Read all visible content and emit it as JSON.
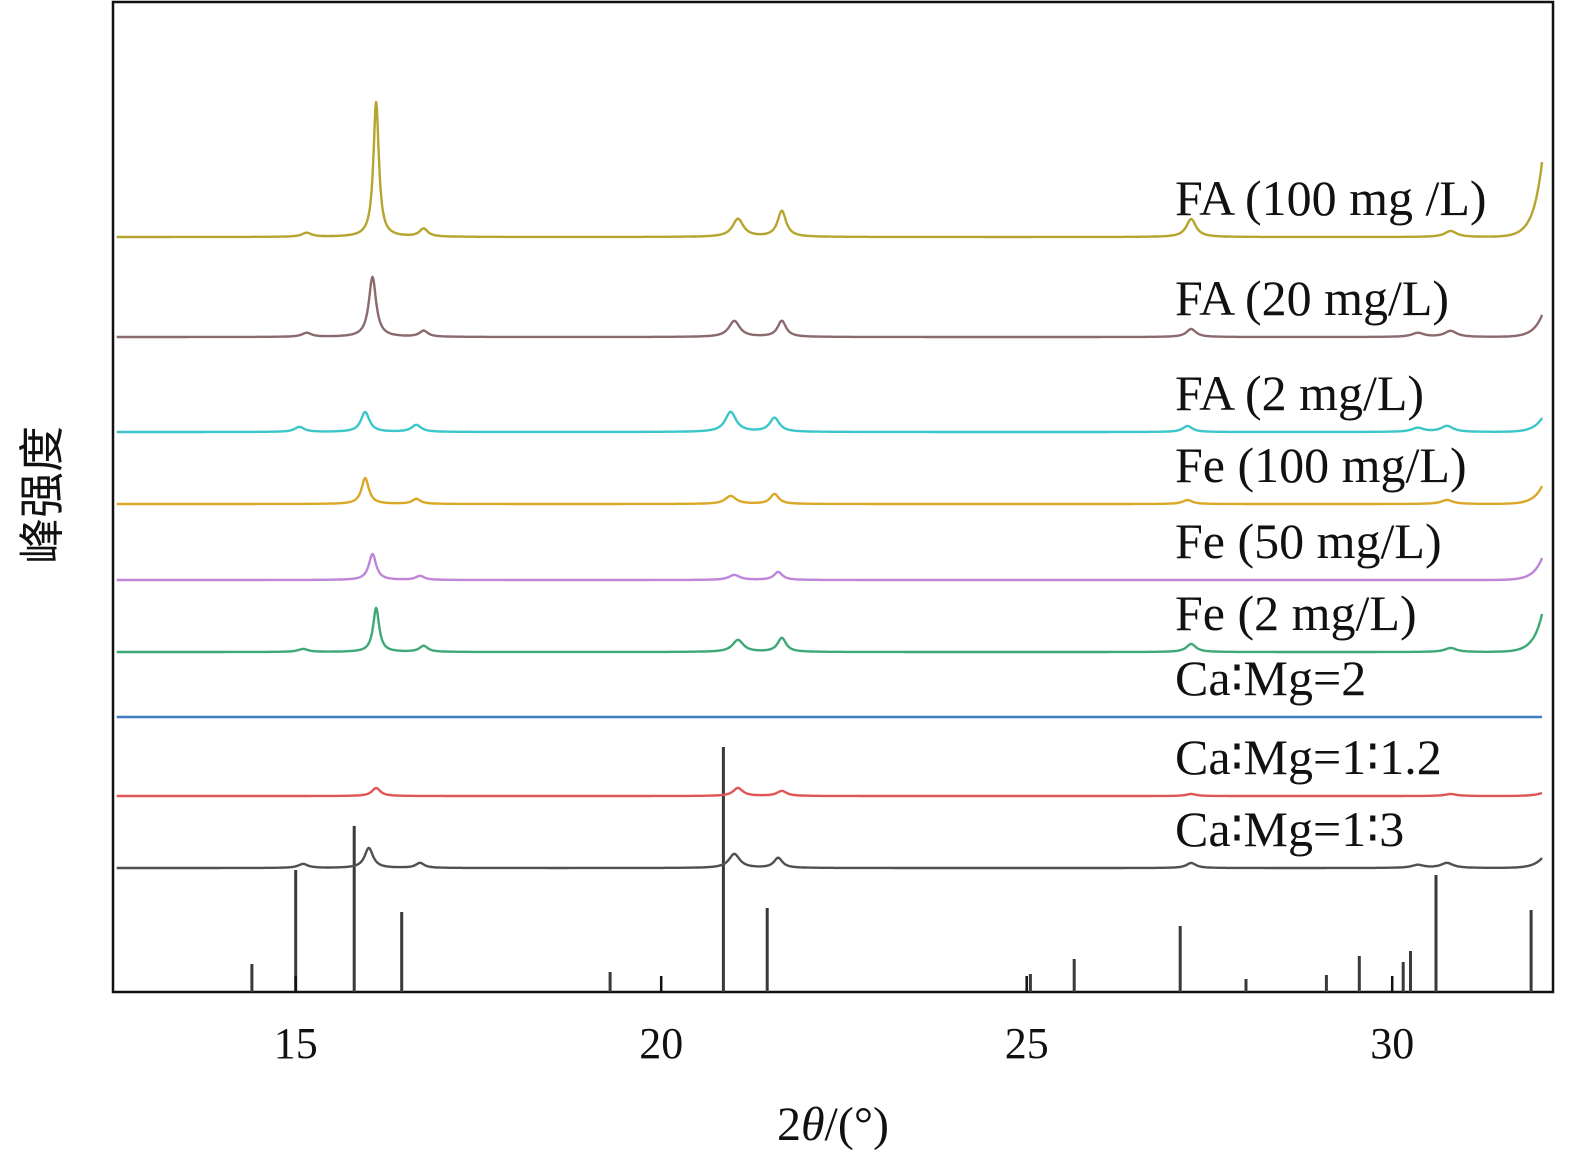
{
  "chart_data": {
    "type": "line",
    "title": "",
    "xlabel_prefix": "2",
    "xlabel_theta": "θ",
    "xlabel_suffix": "/(°)",
    "ylabel": "峰强度",
    "xlim": [
      12.5,
      32.2
    ],
    "xticks": [
      15,
      20,
      25,
      30
    ],
    "grid": false,
    "legend": "inline labels, right side",
    "series": [
      {
        "name": "FA (100 mg /L)",
        "color": "#b5a52e",
        "baseline": 7.55,
        "end_rise": 0.75,
        "peaks": [
          [
            15.15,
            0.04,
            0.08
          ],
          [
            16.1,
            1.35,
            0.045
          ],
          [
            16.75,
            0.08,
            0.07
          ],
          [
            21.05,
            0.18,
            0.09
          ],
          [
            21.65,
            0.26,
            0.07
          ],
          [
            27.25,
            0.18,
            0.08
          ],
          [
            30.8,
            0.06,
            0.1
          ]
        ]
      },
      {
        "name": "FA (20 mg/L)",
        "color": "#8b6a6e",
        "baseline": 6.55,
        "end_rise": 0.22,
        "peaks": [
          [
            15.15,
            0.04,
            0.08
          ],
          [
            16.05,
            0.6,
            0.06
          ],
          [
            16.75,
            0.06,
            0.07
          ],
          [
            21.0,
            0.16,
            0.09
          ],
          [
            21.65,
            0.16,
            0.07
          ],
          [
            27.25,
            0.08,
            0.08
          ],
          [
            30.35,
            0.04,
            0.1
          ],
          [
            30.8,
            0.06,
            0.1
          ]
        ]
      },
      {
        "name": "FA (2 mg/L)",
        "color": "#3cc6c9",
        "baseline": 5.6,
        "end_rise": 0.14,
        "peaks": [
          [
            15.05,
            0.05,
            0.08
          ],
          [
            15.95,
            0.2,
            0.07
          ],
          [
            16.65,
            0.07,
            0.08
          ],
          [
            20.95,
            0.2,
            0.09
          ],
          [
            21.55,
            0.14,
            0.08
          ],
          [
            27.2,
            0.06,
            0.08
          ],
          [
            30.35,
            0.04,
            0.1
          ],
          [
            30.75,
            0.06,
            0.1
          ]
        ]
      },
      {
        "name": "Fe (100 mg/L)",
        "color": "#d9a826",
        "baseline": 4.88,
        "end_rise": 0.18,
        "peaks": [
          [
            15.95,
            0.26,
            0.06
          ],
          [
            16.65,
            0.05,
            0.07
          ],
          [
            20.95,
            0.08,
            0.09
          ],
          [
            21.55,
            0.1,
            0.07
          ],
          [
            27.2,
            0.04,
            0.08
          ],
          [
            30.75,
            0.04,
            0.1
          ]
        ]
      },
      {
        "name": "Fe (50 mg/L)",
        "color": "#bf85d9",
        "baseline": 4.12,
        "end_rise": 0.22,
        "peaks": [
          [
            16.05,
            0.26,
            0.06
          ],
          [
            16.7,
            0.04,
            0.07
          ],
          [
            21.0,
            0.05,
            0.09
          ],
          [
            21.6,
            0.08,
            0.07
          ]
        ]
      },
      {
        "name": "Fe (2 mg/L)",
        "color": "#3ea876",
        "baseline": 3.4,
        "end_rise": 0.38,
        "peaks": [
          [
            15.1,
            0.03,
            0.08
          ],
          [
            16.1,
            0.44,
            0.05
          ],
          [
            16.75,
            0.06,
            0.07
          ],
          [
            21.05,
            0.12,
            0.09
          ],
          [
            21.65,
            0.14,
            0.07
          ],
          [
            27.25,
            0.08,
            0.08
          ],
          [
            30.8,
            0.04,
            0.1
          ]
        ]
      },
      {
        "name": "Ca∶Mg=2",
        "color": "#3f7fc0",
        "baseline": 2.75,
        "end_rise": 0,
        "peaks": []
      },
      {
        "name": "Ca∶Mg=1∶1.2",
        "color": "#e05555",
        "baseline": 1.96,
        "end_rise": 0.03,
        "peaks": [
          [
            16.1,
            0.08,
            0.07
          ],
          [
            21.05,
            0.08,
            0.08
          ],
          [
            21.65,
            0.05,
            0.08
          ],
          [
            27.25,
            0.02,
            0.08
          ],
          [
            30.8,
            0.02,
            0.1
          ]
        ]
      },
      {
        "name": "Ca∶Mg=1∶3",
        "color": "#505050",
        "baseline": 1.24,
        "end_rise": 0.1,
        "peaks": [
          [
            15.1,
            0.04,
            0.08
          ],
          [
            16.0,
            0.2,
            0.07
          ],
          [
            16.7,
            0.05,
            0.07
          ],
          [
            21.0,
            0.14,
            0.09
          ],
          [
            21.6,
            0.1,
            0.07
          ],
          [
            27.25,
            0.05,
            0.08
          ],
          [
            30.35,
            0.03,
            0.1
          ],
          [
            30.75,
            0.05,
            0.1
          ]
        ]
      }
    ],
    "reference_lines": {
      "color": "#3a3a3a",
      "x": [
        14.4,
        15.0,
        15.8,
        16.45,
        19.3,
        20.85,
        21.45,
        25.05,
        25.65,
        27.1,
        28.0,
        29.1,
        29.55,
        30.15,
        30.25,
        30.6,
        31.9
      ],
      "values": [
        0.28,
        1.22,
        1.66,
        0.8,
        0.2,
        2.45,
        0.84,
        0.18,
        0.33,
        0.66,
        0.13,
        0.17,
        0.36,
        0.3,
        0.41,
        1.17,
        0.82
      ]
    }
  }
}
